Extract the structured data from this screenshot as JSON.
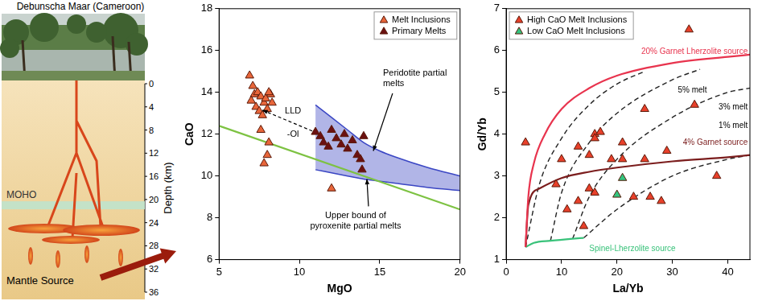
{
  "diagram": {
    "title": "Debunscha Maar (Cameroon)",
    "depth_axis": {
      "label": "Depth (km)",
      "ylim": [
        0,
        36
      ],
      "yticks": [
        0,
        4,
        8,
        12,
        16,
        20,
        24,
        28,
        32,
        36
      ]
    },
    "moho": {
      "label": "MOHO",
      "depth": 21
    },
    "source_label": "Mantle Source"
  },
  "chart_data": [
    {
      "type": "scatter",
      "xlabel": "MgO",
      "ylabel": "CaO",
      "xlim": [
        5,
        20
      ],
      "xticks": [
        5,
        10,
        15,
        20
      ],
      "ylim": [
        6,
        18
      ],
      "yticks": [
        6,
        8,
        10,
        12,
        14,
        16,
        18
      ],
      "legend": "upper right",
      "annotations": [
        "LLD",
        "-Ol"
      ],
      "series": [
        {
          "name": "Melt Inclusions",
          "type": "scatter",
          "marker": "triangle",
          "color": "#e8663a",
          "x": [
            6.9,
            7.1,
            7.2,
            7.0,
            7.4,
            7.6,
            7.3,
            7.5,
            7.8,
            8.0,
            7.7,
            8.2,
            8.3,
            7.6,
            8.1,
            8.0,
            7.8,
            12.0,
            7.9,
            8.1
          ],
          "values": [
            14.8,
            14.3,
            13.9,
            13.6,
            14.0,
            13.8,
            13.3,
            13.1,
            13.5,
            13.2,
            12.9,
            13.9,
            13.5,
            12.2,
            11.6,
            11.0,
            10.6,
            9.4,
            13.7,
            14.0
          ]
        },
        {
          "name": "Primary Melts",
          "type": "scatter",
          "marker": "triangle",
          "color": "#6b1010",
          "x": [
            11.0,
            11.3,
            11.5,
            11.8,
            12.0,
            12.3,
            12.6,
            12.8,
            13.0,
            13.3,
            13.6,
            13.8,
            14.0,
            13.9
          ],
          "values": [
            12.1,
            11.9,
            11.6,
            11.4,
            12.2,
            11.8,
            11.5,
            12.0,
            11.3,
            11.7,
            11.0,
            10.8,
            11.9,
            10.3
          ]
        },
        {
          "name": "Peridotite partial melts",
          "type": "band",
          "color": "#3b47c4",
          "x": [
            11,
            12,
            13,
            14,
            15,
            16,
            18,
            20
          ],
          "upper": [
            13.4,
            12.8,
            12.2,
            11.6,
            11.2,
            10.9,
            10.4,
            10.0
          ],
          "lower": [
            10.3,
            10.15,
            10.0,
            9.85,
            9.75,
            9.65,
            9.45,
            9.3
          ]
        },
        {
          "name": "Upper bound of pyroxenite partial melts",
          "type": "line",
          "line_style": "solid",
          "color": "#7dc242",
          "x": [
            5,
            20
          ],
          "values": [
            12.4,
            8.4
          ]
        }
      ]
    },
    {
      "type": "scatter",
      "xlabel": "La/Yb",
      "ylabel": "Gd/Yb",
      "xlim": [
        0,
        44
      ],
      "xticks": [
        0,
        10,
        20,
        30,
        40
      ],
      "ylim": [
        1,
        7
      ],
      "yticks": [
        1,
        2,
        3,
        4,
        5,
        6,
        7
      ],
      "legend": "upper left",
      "series": [
        {
          "name": "High CaO Melt Inclusions",
          "type": "scatter",
          "marker": "triangle",
          "color": "#e8402a",
          "x": [
            3.5,
            9,
            10,
            11,
            13,
            13,
            15,
            15,
            16,
            16,
            17,
            16,
            21,
            21,
            23,
            25,
            25,
            26,
            28,
            29,
            33,
            34,
            38,
            14,
            19
          ],
          "values": [
            3.8,
            2.8,
            3.4,
            2.2,
            3.7,
            2.4,
            3.5,
            2.7,
            4.0,
            2.6,
            4.05,
            3.9,
            3.8,
            3.4,
            2.5,
            4.6,
            3.4,
            2.5,
            2.4,
            3.6,
            6.5,
            4.7,
            3.0,
            1.8,
            3.4
          ]
        },
        {
          "name": "Low CaO Melt Inclusions",
          "type": "scatter",
          "marker": "triangle",
          "color": "#33c47f",
          "x": [
            20,
            21
          ],
          "values": [
            2.55,
            2.95
          ]
        },
        {
          "name": "20% Garnet Lherzolite source",
          "type": "line",
          "line_style": "solid",
          "color": "#e8344e",
          "x": [
            3.5,
            4,
            5,
            7,
            10,
            15,
            20,
            30,
            40,
            44
          ],
          "values": [
            1.3,
            2.5,
            3.3,
            4.0,
            4.6,
            5.1,
            5.4,
            5.7,
            5.85,
            5.9
          ]
        },
        {
          "name": "4% Garnet source",
          "type": "line",
          "line_style": "solid",
          "color": "#7b1d1d",
          "x": [
            3.5,
            4,
            6,
            10,
            15,
            20,
            30,
            40,
            44
          ],
          "values": [
            1.3,
            2.3,
            2.7,
            2.95,
            3.1,
            3.2,
            3.35,
            3.45,
            3.5
          ]
        },
        {
          "name": "Spinel-Lherzolite source",
          "type": "line",
          "line_style": "solid",
          "color": "#39c27a",
          "x": [
            3.5,
            5,
            8,
            12,
            14
          ],
          "values": [
            1.3,
            1.4,
            1.45,
            1.5,
            1.52
          ]
        },
        {
          "type": "line",
          "line_style": "dashed",
          "color": "#222222",
          "x": [
            3.5,
            6,
            10,
            15,
            20,
            25
          ],
          "values": [
            1.3,
            2.8,
            3.9,
            4.7,
            5.2,
            5.5
          ]
        },
        {
          "name": "5% melt",
          "type": "line",
          "line_style": "dashed",
          "color": "#222222",
          "x": [
            8,
            10,
            15,
            20,
            30,
            35
          ],
          "values": [
            1.45,
            2.6,
            3.8,
            4.5,
            5.3,
            5.55
          ]
        },
        {
          "name": "3% melt",
          "type": "line",
          "line_style": "dashed",
          "color": "#222222",
          "x": [
            12,
            15,
            20,
            30,
            40,
            44
          ],
          "values": [
            1.5,
            2.5,
            3.4,
            4.4,
            5.0,
            5.1
          ]
        },
        {
          "name": "1% melt",
          "type": "line",
          "line_style": "dashed",
          "color": "#222222",
          "x": [
            14,
            20,
            30,
            40,
            44
          ],
          "values": [
            1.52,
            2.2,
            3.0,
            3.4,
            3.5
          ]
        }
      ]
    }
  ]
}
